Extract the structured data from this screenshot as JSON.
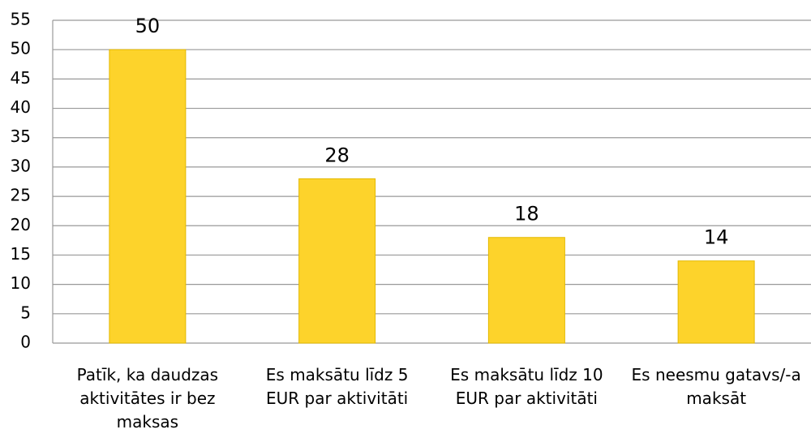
{
  "chart_data": {
    "type": "bar",
    "categories": [
      "Patīk, ka daudzas aktivitātes ir bez maksas",
      "Es maksātu līdz 5 EUR par aktivitāti",
      "Es maksātu līdz 10 EUR par aktivitāti",
      "Es neesmu gatavs/-a maksāt"
    ],
    "values": [
      50,
      28,
      18,
      14
    ],
    "color": "#fdd32b",
    "ylim": [
      0,
      55
    ],
    "yticks": [
      0,
      5,
      10,
      15,
      20,
      25,
      30,
      35,
      40,
      45,
      50,
      55
    ],
    "grid": true
  }
}
